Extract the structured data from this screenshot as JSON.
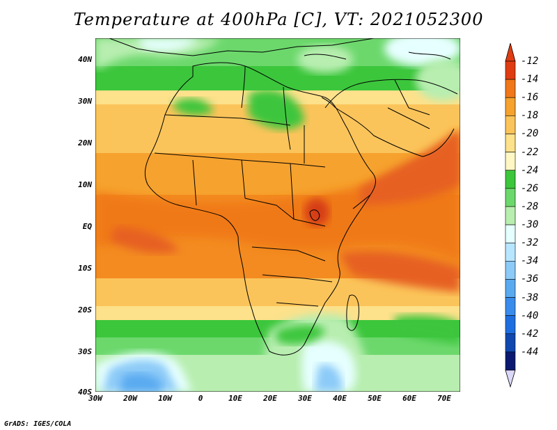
{
  "title": "Temperature at 400hPa [C], VT: 2021052300",
  "credit": "GrADS: IGES/COLA",
  "y_axis": [
    "40N",
    "30N",
    "20N",
    "10N",
    "EQ",
    "10S",
    "20S",
    "30S",
    "40S"
  ],
  "x_axis": [
    "30W",
    "20W",
    "10W",
    "0",
    "10E",
    "20E",
    "30E",
    "40E",
    "50E",
    "60E",
    "70E"
  ],
  "colorbar": {
    "labels": [
      "-12",
      "-14",
      "-16",
      "-18",
      "-20",
      "-22",
      "-24",
      "-26",
      "-28",
      "-30",
      "-32",
      "-34",
      "-36",
      "-38",
      "-40",
      "-42",
      "-44"
    ],
    "colors": [
      "#e03c12",
      "#f07818",
      "#f6a22e",
      "#fbc45a",
      "#fde18b",
      "#fff8c4",
      "#3cc63c",
      "#6cd86c",
      "#b8eeb0",
      "#e6ffff",
      "#b9e6ff",
      "#8ccaf8",
      "#5aaaf0",
      "#3a8cec",
      "#1f6ee0",
      "#1048b0",
      "#0b1a70"
    ],
    "overflow_high": "#e03c12",
    "overflow_low": "#dcd8f8"
  }
}
